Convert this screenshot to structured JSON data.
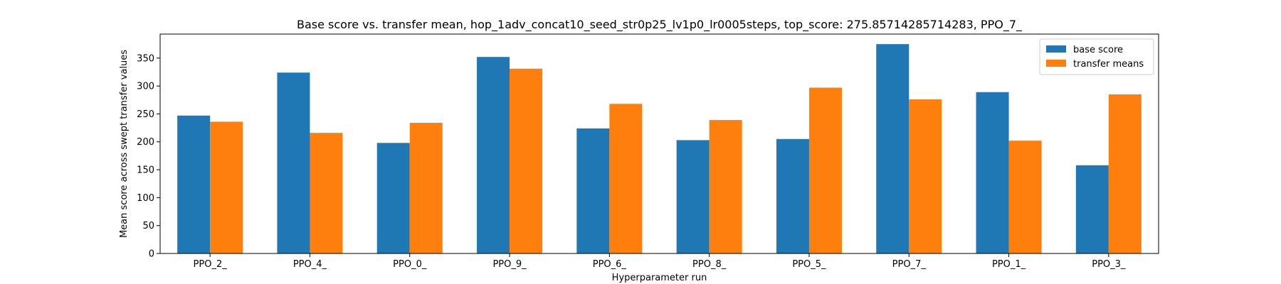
{
  "chart_data": {
    "type": "bar",
    "title": "Base score vs. transfer mean, hop_1adv_concat10_seed_str0p25_lv1p0_lr0005steps, top_score: 275.85714285714283, PPO_7_",
    "xlabel": "Hyperparameter run",
    "ylabel": "Mean score across swept transfer values",
    "categories": [
      "PPO_2_",
      "PPO_4_",
      "PPO_0_",
      "PPO_9_",
      "PPO_6_",
      "PPO_8_",
      "PPO_5_",
      "PPO_7_",
      "PPO_1_",
      "PPO_3_"
    ],
    "series": [
      {
        "name": "base score",
        "color": "#1f77b4",
        "values": [
          247,
          324,
          198,
          352,
          224,
          203,
          205,
          375,
          289,
          158
        ]
      },
      {
        "name": "transfer means",
        "color": "#ff7f0e",
        "values": [
          236,
          216,
          234,
          331,
          268,
          239,
          297,
          276,
          202,
          285
        ]
      }
    ],
    "ylim": [
      0,
      393
    ],
    "yticks": [
      0,
      50,
      100,
      150,
      200,
      250,
      300,
      350
    ],
    "legend": "top-right",
    "grid": false
  }
}
